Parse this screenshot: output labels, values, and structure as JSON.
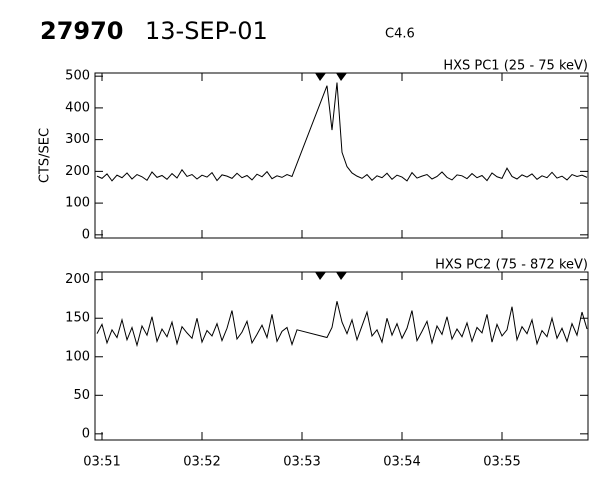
{
  "header": {
    "id": "27970",
    "date": "13-SEP-01",
    "class": "C4.6"
  },
  "chart_data": [
    {
      "type": "line",
      "subtitle": "HXS PC1 (25 - 75 keV)",
      "y_label": "CTS/SEC",
      "color": "#000000",
      "x": [
        50.95,
        51.0,
        51.05,
        51.1,
        51.15,
        51.2,
        51.25,
        51.3,
        51.35,
        51.4,
        51.45,
        51.5,
        51.55,
        51.6,
        51.65,
        51.7,
        51.75,
        51.8,
        51.85,
        51.9,
        51.95,
        52.0,
        52.05,
        52.1,
        52.15,
        52.2,
        52.25,
        52.3,
        52.35,
        52.4,
        52.45,
        52.5,
        52.55,
        52.6,
        52.65,
        52.7,
        52.75,
        52.8,
        52.85,
        52.9,
        52.95,
        53.25,
        53.3,
        53.35,
        53.4,
        53.45,
        53.5,
        53.55,
        53.6,
        53.65,
        53.7,
        53.75,
        53.8,
        53.85,
        53.9,
        53.95,
        54.0,
        54.05,
        54.1,
        54.15,
        54.2,
        54.25,
        54.3,
        54.35,
        54.4,
        54.45,
        54.5,
        54.55,
        54.6,
        54.65,
        54.7,
        54.75,
        54.8,
        54.85,
        54.9,
        54.95,
        55.0,
        55.05,
        55.1,
        55.15,
        55.2,
        55.25,
        55.3,
        55.35,
        55.4,
        55.45,
        55.5,
        55.55,
        55.6,
        55.65,
        55.7,
        55.75,
        55.8,
        55.85
      ],
      "values": [
        185,
        178,
        192,
        170,
        188,
        180,
        195,
        176,
        190,
        183,
        172,
        198,
        181,
        187,
        175,
        193,
        179,
        205,
        184,
        190,
        176,
        188,
        182,
        196,
        171,
        189,
        185,
        178,
        194,
        180,
        187,
        173,
        191,
        183,
        199,
        177,
        186,
        181,
        190,
        184,
        225,
        470,
        330,
        480,
        260,
        215,
        195,
        185,
        178,
        190,
        172,
        186,
        180,
        194,
        175,
        188,
        182,
        170,
        196,
        179,
        185,
        190,
        176,
        184,
        198,
        181,
        173,
        189,
        186,
        177,
        193,
        180,
        187,
        171,
        195,
        183,
        178,
        210,
        184,
        176,
        189,
        182,
        192,
        175,
        186,
        180,
        197,
        179,
        185,
        173,
        190,
        184,
        188,
        181
      ],
      "xlim": [
        50.93,
        55.86
      ],
      "xticks": [
        51,
        52,
        53,
        54,
        55
      ],
      "ylim": [
        -10,
        510
      ],
      "yticks": [
        0,
        100,
        200,
        300,
        400,
        500
      ]
    },
    {
      "type": "line",
      "subtitle": "HXS PC2 (75 - 872 keV)",
      "color": "#000000",
      "x": [
        50.95,
        51.0,
        51.05,
        51.1,
        51.15,
        51.2,
        51.25,
        51.3,
        51.35,
        51.4,
        51.45,
        51.5,
        51.55,
        51.6,
        51.65,
        51.7,
        51.75,
        51.8,
        51.85,
        51.9,
        51.95,
        52.0,
        52.05,
        52.1,
        52.15,
        52.2,
        52.25,
        52.3,
        52.35,
        52.4,
        52.45,
        52.5,
        52.55,
        52.6,
        52.65,
        52.7,
        52.75,
        52.8,
        52.85,
        52.9,
        52.95,
        53.25,
        53.3,
        53.35,
        53.4,
        53.45,
        53.5,
        53.55,
        53.6,
        53.65,
        53.7,
        53.75,
        53.8,
        53.85,
        53.9,
        53.95,
        54.0,
        54.05,
        54.1,
        54.15,
        54.2,
        54.25,
        54.3,
        54.35,
        54.4,
        54.45,
        54.5,
        54.55,
        54.6,
        54.65,
        54.7,
        54.75,
        54.8,
        54.85,
        54.9,
        54.95,
        55.0,
        55.05,
        55.1,
        55.15,
        55.2,
        55.25,
        55.3,
        55.35,
        55.4,
        55.45,
        55.5,
        55.55,
        55.6,
        55.65,
        55.7,
        55.75,
        55.8,
        55.85
      ],
      "values": [
        130,
        142,
        118,
        135,
        125,
        148,
        122,
        138,
        115,
        140,
        128,
        152,
        120,
        136,
        126,
        145,
        117,
        139,
        131,
        124,
        150,
        119,
        134,
        127,
        143,
        121,
        137,
        160,
        123,
        132,
        146,
        118,
        129,
        141,
        125,
        155,
        120,
        133,
        138,
        116,
        135,
        125,
        138,
        172,
        145,
        130,
        148,
        122,
        140,
        158,
        127,
        135,
        119,
        150,
        128,
        143,
        124,
        137,
        160,
        121,
        133,
        146,
        118,
        140,
        129,
        152,
        123,
        136,
        126,
        144,
        120,
        138,
        131,
        155,
        119,
        142,
        127,
        135,
        165,
        122,
        139,
        130,
        148,
        117,
        134,
        126,
        150,
        124,
        137,
        120,
        143,
        128,
        158,
        136
      ],
      "xlim": [
        50.93,
        55.86
      ],
      "xticks": [
        {
          "value": 51,
          "label": "03:51"
        },
        {
          "value": 52,
          "label": "03:52"
        },
        {
          "value": 53,
          "label": "03:53"
        },
        {
          "value": 54,
          "label": "03:54"
        },
        {
          "value": 55,
          "label": "03:55"
        }
      ],
      "ylim": [
        -8,
        210
      ],
      "yticks": [
        0,
        50,
        100,
        150,
        200
      ]
    }
  ]
}
